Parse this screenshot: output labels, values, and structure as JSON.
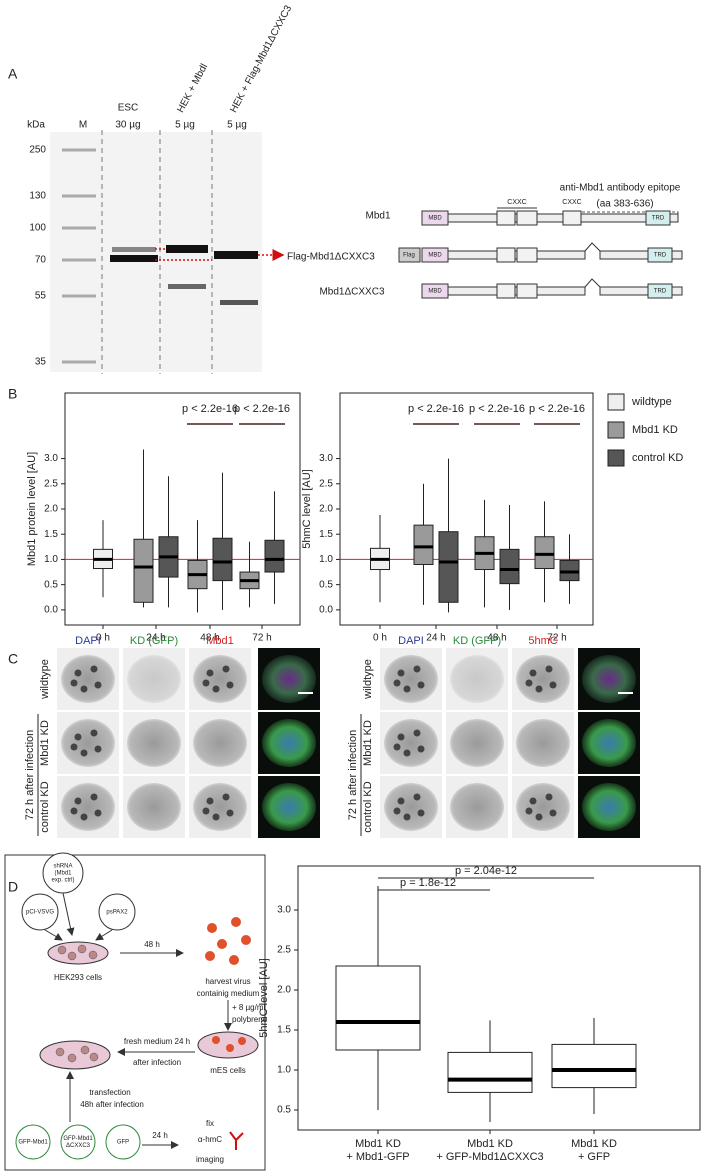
{
  "panels": {
    "A": "A",
    "B": "B",
    "C": "C",
    "D": "D"
  },
  "blot": {
    "kda_label": "kDa",
    "lanes": [
      [
        "M"
      ],
      [
        "ESC",
        "30 µg"
      ],
      [
        "HEK + Mbdl",
        "5 µg"
      ],
      [
        "HEK + Flag-Mbd1ΔCXXC3",
        "5 µg"
      ]
    ],
    "markers_kda": [
      250,
      130,
      100,
      70,
      55,
      35
    ],
    "band_label": "Flag-Mbd1ΔCXXC3"
  },
  "domain_diagram": {
    "epitope": [
      "anti-Mbd1 antibody epitope",
      "(aa 383-636)"
    ],
    "proteins": [
      "Mbd1",
      "Mbd1ΔCXXC3"
    ],
    "domains": {
      "mbd": "MBD",
      "cxxc": "CXXC",
      "trd": "TRD",
      "flag": "Flag"
    }
  },
  "chart_data": [
    {
      "type": "box",
      "y_label": "Mbd1 protein level [AU]",
      "categories": [
        "0 h",
        "24 h",
        "48 h",
        "72 h"
      ],
      "ylim": [
        -0.3,
        4.3
      ],
      "yticks": [
        {
          "value": 0,
          "label": "0.0"
        },
        0.5,
        {
          "value": 1,
          "label": "1.0"
        },
        1.5,
        {
          "value": 2,
          "label": "2.0"
        },
        2.5,
        {
          "value": 3,
          "label": "3.0"
        }
      ],
      "reference_line": {
        "value": 1,
        "color": "#e02020"
      },
      "annotations": [
        null,
        null,
        "p < 2.2e-16",
        "p < 2.2e-16"
      ],
      "series": [
        {
          "name": "wildtype",
          "color": "#eeeeee",
          "values": [
            {
              "whislo": 0.25,
              "q1": 0.82,
              "med": 1.0,
              "q3": 1.2,
              "whishi": 1.78
            },
            null,
            null,
            null
          ]
        },
        {
          "name": "Mbd1 KD",
          "color": "#9a9a9a",
          "values": [
            null,
            {
              "whislo": 0.05,
              "q1": 0.15,
              "med": 0.85,
              "q3": 1.4,
              "whishi": 3.18
            },
            {
              "whislo": -0.05,
              "q1": 0.42,
              "med": 0.7,
              "q3": 0.98,
              "whishi": 1.78
            },
            {
              "whislo": 0.05,
              "q1": 0.42,
              "med": 0.58,
              "q3": 0.75,
              "whishi": 1.35
            }
          ]
        },
        {
          "name": "control KD",
          "color": "#565656",
          "values": [
            null,
            {
              "whislo": 0.05,
              "q1": 0.65,
              "med": 1.05,
              "q3": 1.45,
              "whishi": 2.65
            },
            {
              "whislo": 0.0,
              "q1": 0.58,
              "med": 0.95,
              "q3": 1.42,
              "whishi": 2.72
            },
            {
              "whislo": 0.12,
              "q1": 0.75,
              "med": 1.0,
              "q3": 1.38,
              "whishi": 2.35
            }
          ]
        }
      ]
    },
    {
      "type": "box",
      "y_label": "5hmC level [AU]",
      "categories": [
        "0 h",
        "24 h",
        "48 h",
        "72 h"
      ],
      "ylim": [
        -0.3,
        4.3
      ],
      "yticks": [
        {
          "value": 0,
          "label": "0.0"
        },
        0.5,
        {
          "value": 1,
          "label": "1.0"
        },
        1.5,
        {
          "value": 2,
          "label": "2.0"
        },
        2.5,
        {
          "value": 3,
          "label": "3.0"
        }
      ],
      "reference_line": {
        "value": 1,
        "color": "#e02020"
      },
      "annotations": [
        null,
        "p < 2.2e-16",
        "p < 2.2e-16",
        "p < 2.2e-16"
      ],
      "series": [
        {
          "color": "#eeeeee",
          "values": [
            {
              "whislo": 0.15,
              "q1": 0.8,
              "med": 1.0,
              "q3": 1.22,
              "whishi": 1.88
            },
            null,
            null,
            null
          ]
        },
        {
          "color": "#9a9a9a",
          "values": [
            null,
            {
              "whislo": 0.1,
              "q1": 0.9,
              "med": 1.25,
              "q3": 1.68,
              "whishi": 2.5
            },
            {
              "whislo": 0.05,
              "q1": 0.8,
              "med": 1.12,
              "q3": 1.45,
              "whishi": 2.18
            },
            {
              "whislo": 0.15,
              "q1": 0.82,
              "med": 1.1,
              "q3": 1.45,
              "whishi": 2.15
            }
          ]
        },
        {
          "color": "#565656",
          "values": [
            null,
            {
              "whislo": -0.05,
              "q1": 0.15,
              "med": 0.95,
              "q3": 1.55,
              "whishi": 3.0
            },
            {
              "whislo": 0.0,
              "q1": 0.52,
              "med": 0.8,
              "q3": 1.2,
              "whishi": 2.08
            },
            {
              "whislo": 0.12,
              "q1": 0.58,
              "med": 0.75,
              "q3": 0.98,
              "whishi": 1.5
            }
          ]
        }
      ]
    },
    {
      "type": "box",
      "y_label": "5hmC level [AU]",
      "categories": [
        [
          "Mbd1 KD",
          "+ Mbd1-GFP"
        ],
        [
          "Mbd1 KD",
          "+ GFP-Mbd1ΔCXXC3"
        ],
        [
          "Mbd1 KD",
          "+ GFP"
        ]
      ],
      "ylim": [
        0.25,
        3.55
      ],
      "yticks": [
        0.5,
        {
          "value": 1,
          "label": "1.0"
        },
        1.5,
        {
          "value": 2,
          "label": "2.0"
        },
        2.5,
        {
          "value": 3,
          "label": "3.0"
        }
      ],
      "comparison_labels": [
        null,
        "p = 1.8e-12",
        "p = 2.04e-12"
      ],
      "series": [
        {
          "color": "#ffffff",
          "values": [
            {
              "whislo": 0.5,
              "q1": 1.25,
              "med": 1.6,
              "q3": 2.3,
              "whishi": 3.3
            },
            {
              "whislo": 0.35,
              "q1": 0.72,
              "med": 0.88,
              "q3": 1.22,
              "whishi": 1.62
            },
            {
              "whislo": 0.45,
              "q1": 0.78,
              "med": 1.0,
              "q3": 1.32,
              "whishi": 1.65
            }
          ]
        }
      ]
    }
  ],
  "microscopy": [
    {
      "channels": [
        "DAPI",
        "KD (GFP)",
        "Mbd1"
      ],
      "rows": [
        "wildtype",
        "Mbd1 KD",
        "control KD"
      ],
      "group": "72 h after infection"
    },
    {
      "channels": [
        "DAPI",
        "KD (GFP)",
        "5hmC"
      ],
      "rows": [
        "wildtype",
        "Mbd1 KD",
        "control KD"
      ],
      "group": "72 h after infection"
    }
  ],
  "schematic": {
    "shrna": [
      "shRNA",
      "(Mbd1",
      "exp. ctrl)"
    ],
    "plasmids": [
      "pCI-VSVG",
      "psPAX2"
    ],
    "hek": "HEK293 cells",
    "step1": "48 h",
    "harvest": [
      "harvest virus",
      "containig medium"
    ],
    "polybrene": [
      "+ 8 µg/ml",
      "polybrene"
    ],
    "mes": "mES cells",
    "fresh": [
      "fresh medium 24 h",
      "after infection"
    ],
    "transfection": [
      "transfection",
      "48h after infection"
    ],
    "constructs": [
      [
        "GFP-Mbd1"
      ],
      [
        "GFP-Mbd1",
        "ΔCXXC3"
      ],
      [
        "GFP"
      ]
    ],
    "step2": "24 h",
    "final": [
      "fix",
      "α-hmC",
      "imaging"
    ]
  }
}
